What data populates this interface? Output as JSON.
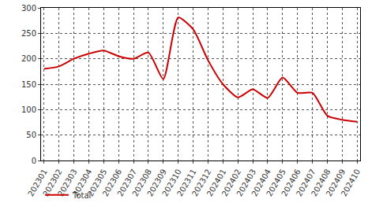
{
  "chart_data": {
    "type": "line",
    "categories": [
      "202301",
      "202302",
      "202303",
      "202304",
      "202305",
      "202306",
      "202307",
      "202308",
      "202309",
      "202310",
      "202311",
      "202312",
      "202401",
      "202402",
      "202403",
      "202404",
      "202405",
      "202406",
      "202407",
      "202408",
      "202409",
      "202410"
    ],
    "series": [
      {
        "name": "Total",
        "color": "#cc0000",
        "values": [
          180,
          185,
          200,
          210,
          216,
          205,
          200,
          212,
          160,
          281,
          258,
          197,
          150,
          124,
          140,
          123,
          163,
          133,
          133,
          88,
          80,
          76
        ]
      }
    ],
    "ylim": [
      0,
      300
    ],
    "yticks": [
      0,
      50,
      100,
      150,
      200,
      250,
      300
    ],
    "grid": true,
    "legend": "bottom"
  }
}
